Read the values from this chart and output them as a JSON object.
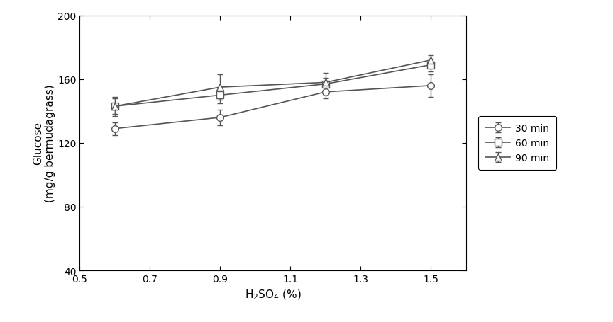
{
  "x": [
    0.6,
    0.9,
    1.2,
    1.5
  ],
  "series": [
    {
      "key": "30 min",
      "y": [
        129,
        136,
        152,
        156
      ],
      "yerr": [
        4,
        5,
        4,
        7
      ],
      "marker": "o",
      "label": "30 min"
    },
    {
      "key": "60 min",
      "y": [
        143,
        150,
        157,
        169
      ],
      "yerr": [
        5,
        5,
        4,
        4
      ],
      "marker": "s",
      "label": "60 min"
    },
    {
      "key": "90 min",
      "y": [
        143,
        155,
        158,
        172
      ],
      "yerr": [
        6,
        8,
        6,
        3
      ],
      "marker": "^",
      "label": "90 min"
    }
  ],
  "line_color": "#555555",
  "xlabel": "H$_2$SO$_4$ (%)",
  "ylabel": "Glucose\n(mg/g bermudagrass)",
  "xlim": [
    0.5,
    1.6
  ],
  "ylim": [
    40,
    200
  ],
  "xticks": [
    0.5,
    0.7,
    0.9,
    1.1,
    1.3,
    1.5
  ],
  "yticks": [
    40,
    80,
    120,
    160,
    200
  ],
  "background_color": "#ffffff",
  "marker_size": 7,
  "linewidth": 1.2,
  "capsize": 3,
  "elinewidth": 1.0,
  "markeredgewidth": 1.0,
  "xlabel_fontsize": 11,
  "ylabel_fontsize": 11,
  "tick_labelsize": 10,
  "legend_fontsize": 10
}
